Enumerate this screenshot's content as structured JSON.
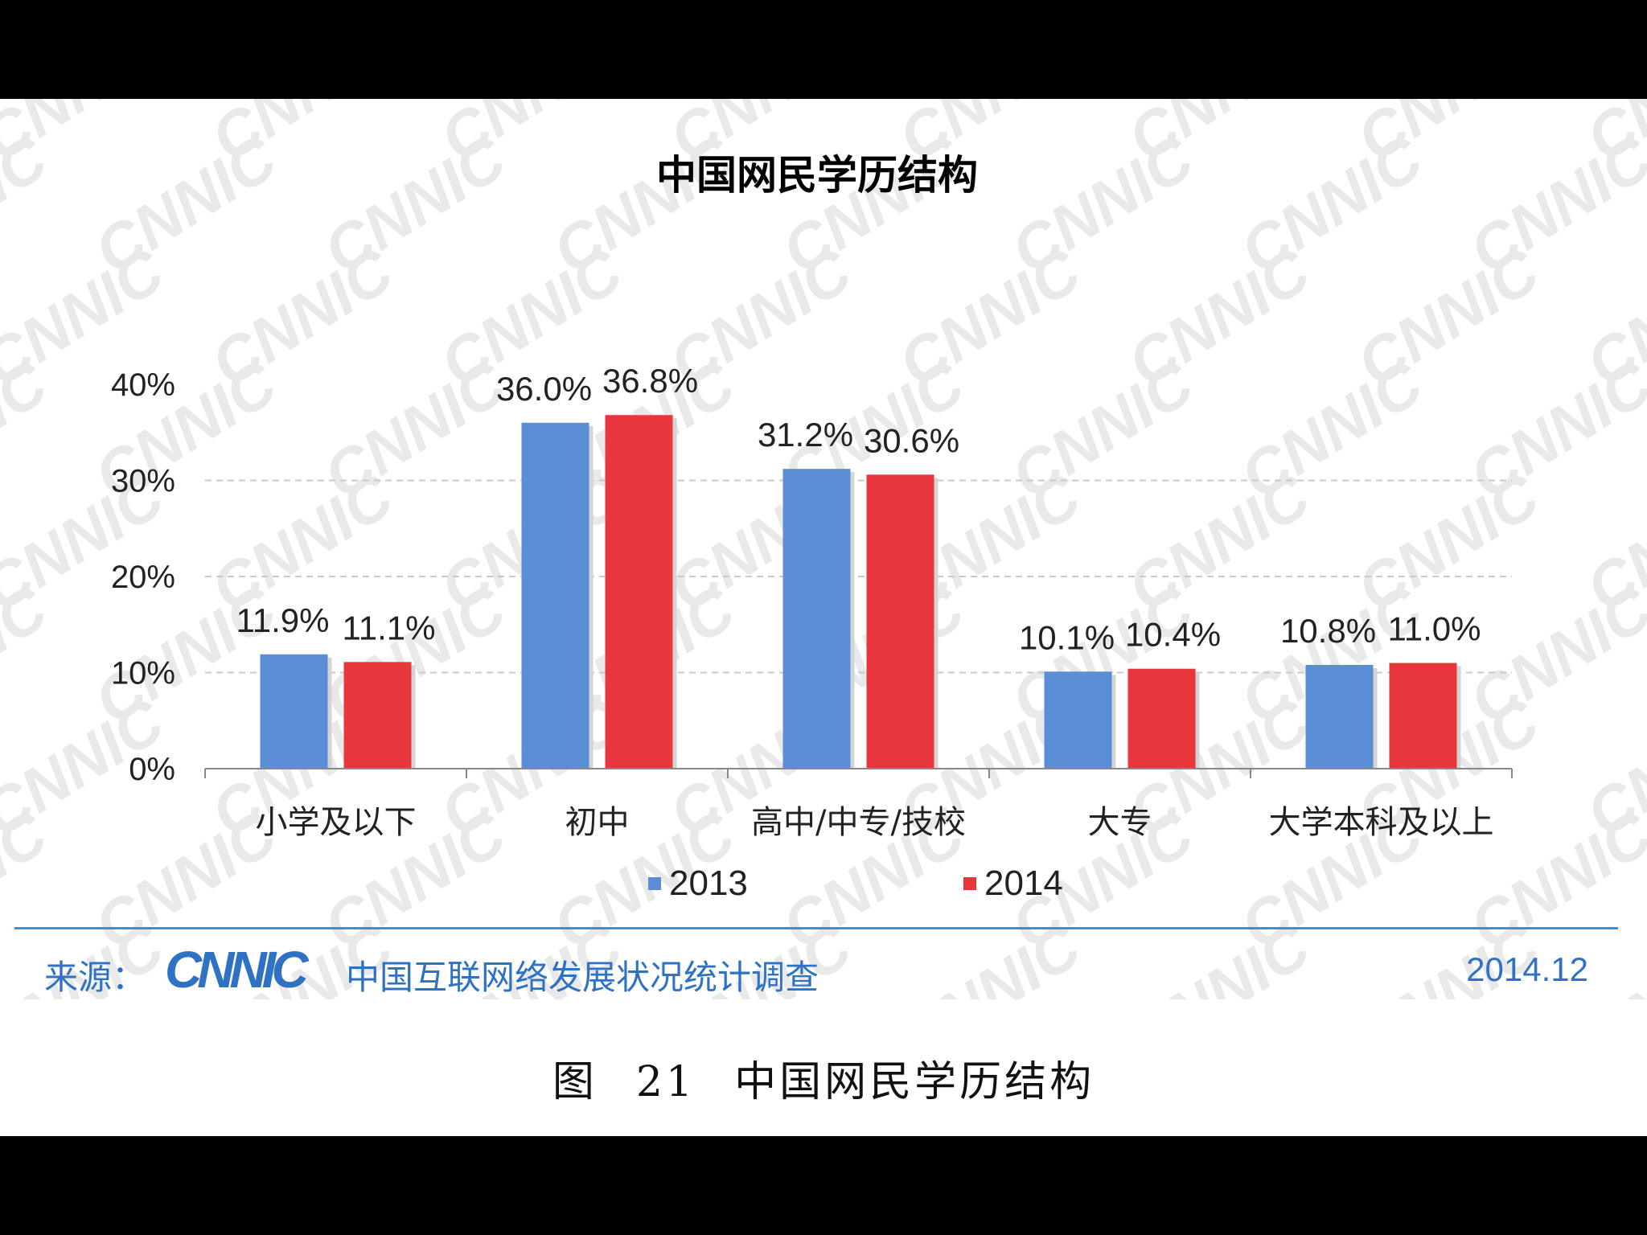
{
  "chart_data": {
    "type": "bar",
    "title": "中国网民学历结构",
    "categories": [
      "小学及以下",
      "初中",
      "高中/中专/技校",
      "大专",
      "大学本科及以上"
    ],
    "series": [
      {
        "name": "2013",
        "values": [
          11.9,
          36.0,
          31.2,
          10.1,
          10.8
        ],
        "labels": [
          "11.9%",
          "36.0%",
          "31.2%",
          "10.1%",
          "10.8%"
        ],
        "color": "#5a8ed6"
      },
      {
        "name": "2014",
        "values": [
          11.1,
          36.8,
          30.6,
          10.4,
          11.0
        ],
        "labels": [
          "11.1%",
          "36.8%",
          "30.6%",
          "10.4%",
          "11.0%"
        ],
        "color": "#e8373c"
      }
    ],
    "ylim": [
      0,
      40
    ],
    "yticks": [
      "0%",
      "10%",
      "20%",
      "30%",
      "40%"
    ],
    "grid": true,
    "legend": "bottom-center"
  },
  "source": {
    "label": "来源：",
    "logo_text": "CNNIC",
    "name": "中国互联网络发展状况统计调查",
    "date": "2014.12"
  },
  "caption": {
    "prefix": "图",
    "number": "21",
    "text": "中国网民学历结构"
  },
  "colors": {
    "accent": "#2f72c4",
    "watermark": "#e9e9e9"
  }
}
